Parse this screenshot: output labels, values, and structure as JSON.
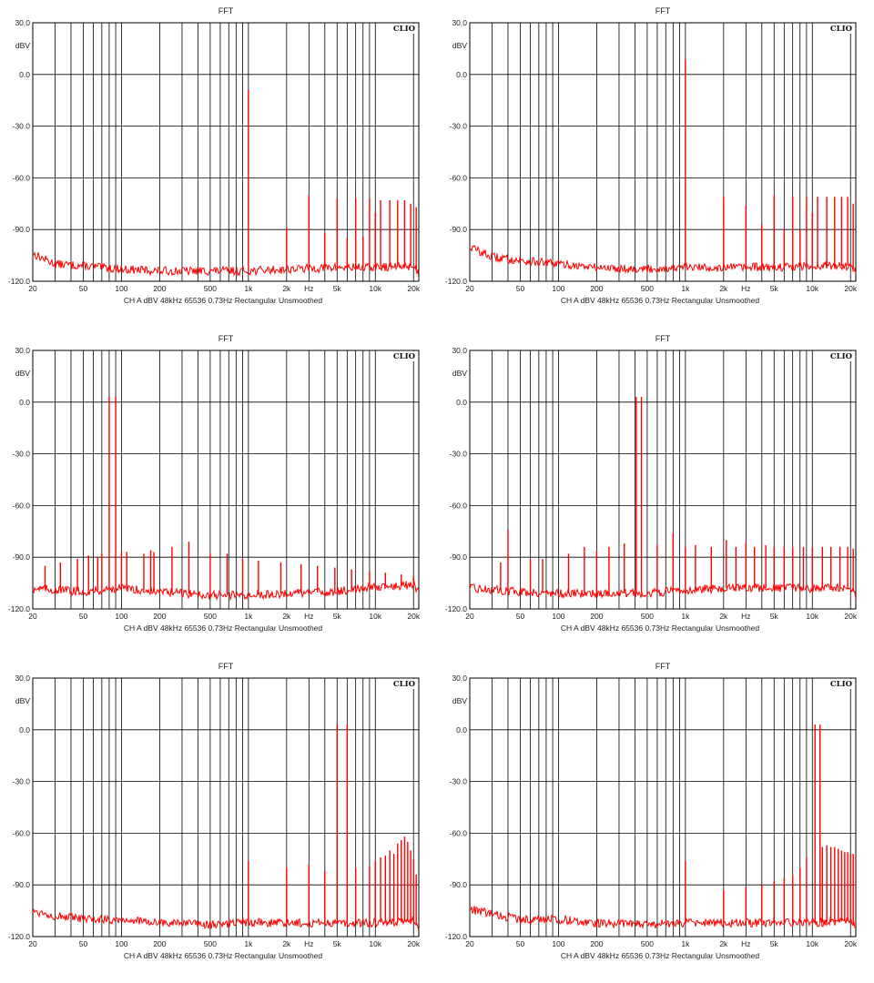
{
  "colors": {
    "trace": "#ff0000",
    "grid": "#000000",
    "background": "#ffffff"
  },
  "chart_data": [
    {
      "type": "line",
      "title": "FFT",
      "brand": "CLIO",
      "ylabel": "dBV",
      "xlabel": "Hz",
      "footer": "CH A   dBV   48kHz   65536   0.73Hz   Rectangular   Unsmoothed",
      "xscale": "log",
      "xlim": [
        20,
        22000
      ],
      "ylim": [
        -120,
        30
      ],
      "ytick_labels": [
        "30.0",
        "0.0",
        "-30.0",
        "-60.0",
        "-90.0",
        "-120.0"
      ],
      "xtick_labels": [
        "20",
        "50",
        "100",
        "200",
        "500",
        "1k",
        "2k",
        "Hz",
        "5k",
        "10k",
        "20k"
      ],
      "grid": true,
      "noise_floor": {
        "x": [
          20,
          30,
          50,
          100,
          200,
          500,
          1000,
          2000,
          5000,
          10000,
          20000,
          22000
        ],
        "y": [
          -104,
          -110,
          -111,
          -113,
          -114,
          -114,
          -114,
          -113,
          -112,
          -112,
          -111,
          -116
        ]
      },
      "peaks": [
        {
          "freq": 1000,
          "level": -9
        },
        {
          "freq": 2000,
          "level": -89
        },
        {
          "freq": 3000,
          "level": -70
        },
        {
          "freq": 4000,
          "level": -92
        },
        {
          "freq": 5000,
          "level": -72
        },
        {
          "freq": 6000,
          "level": -95
        },
        {
          "freq": 7000,
          "level": -72
        },
        {
          "freq": 8000,
          "level": -94
        },
        {
          "freq": 9000,
          "level": -72
        },
        {
          "freq": 10000,
          "level": -80
        },
        {
          "freq": 11000,
          "level": -73
        },
        {
          "freq": 13000,
          "level": -73
        },
        {
          "freq": 15000,
          "level": -73
        },
        {
          "freq": 17000,
          "level": -73
        },
        {
          "freq": 19000,
          "level": -75
        },
        {
          "freq": 21000,
          "level": -77
        }
      ]
    },
    {
      "type": "line",
      "title": "FFT",
      "brand": "CLIO",
      "ylabel": "dBV",
      "xlabel": "Hz",
      "footer": "CH A   dBV   48kHz   65536   0.73Hz   Rectangular   Unsmoothed",
      "xscale": "log",
      "xlim": [
        20,
        22000
      ],
      "ylim": [
        -120,
        30
      ],
      "ytick_labels": [
        "30.0",
        "0.0",
        "-30.0",
        "-60.0",
        "-90.0",
        "-120.0"
      ],
      "xtick_labels": [
        "20",
        "50",
        "100",
        "200",
        "500",
        "1k",
        "2k",
        "Hz",
        "5k",
        "10k",
        "20k"
      ],
      "grid": true,
      "noise_floor": {
        "x": [
          20,
          30,
          50,
          100,
          200,
          500,
          1000,
          2000,
          5000,
          10000,
          20000,
          22000
        ],
        "y": [
          -100,
          -106,
          -108,
          -110,
          -112,
          -113,
          -112,
          -112,
          -112,
          -111,
          -111,
          -115
        ]
      },
      "peaks": [
        {
          "freq": 1000,
          "level": 9
        },
        {
          "freq": 2000,
          "level": -71
        },
        {
          "freq": 3000,
          "level": -76
        },
        {
          "freq": 4000,
          "level": -87
        },
        {
          "freq": 5000,
          "level": -70
        },
        {
          "freq": 6000,
          "level": -90
        },
        {
          "freq": 7000,
          "level": -71
        },
        {
          "freq": 8000,
          "level": -90
        },
        {
          "freq": 9000,
          "level": -71
        },
        {
          "freq": 10000,
          "level": -80
        },
        {
          "freq": 11000,
          "level": -71
        },
        {
          "freq": 13000,
          "level": -71
        },
        {
          "freq": 15000,
          "level": -71
        },
        {
          "freq": 17000,
          "level": -71
        },
        {
          "freq": 19000,
          "level": -71
        },
        {
          "freq": 21000,
          "level": -75
        }
      ]
    },
    {
      "type": "line",
      "title": "FFT",
      "brand": "CLIO",
      "ylabel": "dBV",
      "xlabel": "Hz",
      "footer": "CH A   dBV   48kHz   65536   0.73Hz   Rectangular   Unsmoothed",
      "xscale": "log",
      "xlim": [
        20,
        22000
      ],
      "ylim": [
        -120,
        30
      ],
      "ytick_labels": [
        "30.0",
        "0.0",
        "-30.0",
        "-60.0",
        "-90.0",
        "-120.0"
      ],
      "xtick_labels": [
        "20",
        "50",
        "100",
        "200",
        "500",
        "1k",
        "2k",
        "Hz",
        "5k",
        "10k",
        "20k"
      ],
      "grid": true,
      "noise_floor": {
        "x": [
          20,
          50,
          100,
          200,
          500,
          1000,
          2000,
          5000,
          10000,
          20000,
          22000
        ],
        "y": [
          -108,
          -110,
          -108,
          -110,
          -112,
          -112,
          -111,
          -110,
          -107,
          -106,
          -110
        ]
      },
      "peaks": [
        {
          "freq": 80,
          "level": 3
        },
        {
          "freq": 90,
          "level": 3
        },
        {
          "freq": 25,
          "level": -95
        },
        {
          "freq": 33,
          "level": -93
        },
        {
          "freq": 45,
          "level": -91
        },
        {
          "freq": 55,
          "level": -89
        },
        {
          "freq": 65,
          "level": -90
        },
        {
          "freq": 70,
          "level": -88
        },
        {
          "freq": 100,
          "level": -87
        },
        {
          "freq": 110,
          "level": -87
        },
        {
          "freq": 150,
          "level": -88
        },
        {
          "freq": 170,
          "level": -86
        },
        {
          "freq": 180,
          "level": -87
        },
        {
          "freq": 250,
          "level": -84
        },
        {
          "freq": 340,
          "level": -81
        },
        {
          "freq": 500,
          "level": -88
        },
        {
          "freq": 680,
          "level": -88
        },
        {
          "freq": 900,
          "level": -91
        },
        {
          "freq": 1200,
          "level": -92
        },
        {
          "freq": 1800,
          "level": -93
        },
        {
          "freq": 2600,
          "level": -94
        },
        {
          "freq": 3500,
          "level": -95
        },
        {
          "freq": 4800,
          "level": -96
        },
        {
          "freq": 6500,
          "level": -97
        },
        {
          "freq": 9000,
          "level": -98
        },
        {
          "freq": 12000,
          "level": -99
        },
        {
          "freq": 16000,
          "level": -100
        },
        {
          "freq": 20000,
          "level": -101
        }
      ]
    },
    {
      "type": "line",
      "title": "FFT",
      "brand": "CLIO",
      "ylabel": "dBV",
      "xlabel": "Hz",
      "footer": "CH A   dBV   48kHz   65536   0.73Hz   Rectangular   Unsmoothed",
      "xscale": "log",
      "xlim": [
        20,
        22000
      ],
      "ylim": [
        -120,
        30
      ],
      "ytick_labels": [
        "30.0",
        "0.0",
        "-30.0",
        "-60.0",
        "-90.0",
        "-120.0"
      ],
      "xtick_labels": [
        "20",
        "50",
        "100",
        "200",
        "500",
        "1k",
        "2k",
        "Hz",
        "5k",
        "10k",
        "20k"
      ],
      "grid": true,
      "noise_floor": {
        "x": [
          20,
          50,
          100,
          200,
          500,
          1000,
          2000,
          5000,
          10000,
          20000,
          22000
        ],
        "y": [
          -108,
          -110,
          -111,
          -111,
          -111,
          -109,
          -108,
          -108,
          -108,
          -108,
          -112
        ]
      },
      "peaks": [
        {
          "freq": 410,
          "level": 3
        },
        {
          "freq": 450,
          "level": 3
        },
        {
          "freq": 40,
          "level": -74
        },
        {
          "freq": 35,
          "level": -93
        },
        {
          "freq": 60,
          "level": -91
        },
        {
          "freq": 75,
          "level": -91
        },
        {
          "freq": 120,
          "level": -88
        },
        {
          "freq": 160,
          "level": -84
        },
        {
          "freq": 200,
          "level": -86
        },
        {
          "freq": 250,
          "level": -84
        },
        {
          "freq": 330,
          "level": -82
        },
        {
          "freq": 600,
          "level": -83
        },
        {
          "freq": 800,
          "level": -76
        },
        {
          "freq": 1000,
          "level": -84
        },
        {
          "freq": 1200,
          "level": -83
        },
        {
          "freq": 1600,
          "level": -84
        },
        {
          "freq": 2100,
          "level": -80
        },
        {
          "freq": 2500,
          "level": -84
        },
        {
          "freq": 3000,
          "level": -81
        },
        {
          "freq": 3500,
          "level": -84
        },
        {
          "freq": 4300,
          "level": -83
        },
        {
          "freq": 5000,
          "level": -84
        },
        {
          "freq": 6000,
          "level": -84
        },
        {
          "freq": 7000,
          "level": -84
        },
        {
          "freq": 8500,
          "level": -84
        },
        {
          "freq": 10000,
          "level": -84
        },
        {
          "freq": 12000,
          "level": -84
        },
        {
          "freq": 14000,
          "level": -84
        },
        {
          "freq": 16500,
          "level": -84
        },
        {
          "freq": 19000,
          "level": -84
        },
        {
          "freq": 21000,
          "level": -85
        }
      ]
    },
    {
      "type": "line",
      "title": "FFT",
      "brand": "CLIO",
      "ylabel": "dBV",
      "xlabel": "Hz",
      "footer": "CH A   dBV   48kHz   65536   0.73Hz   Rectangular   Unsmoothed",
      "xscale": "log",
      "xlim": [
        20,
        22000
      ],
      "ylim": [
        -120,
        30
      ],
      "ytick_labels": [
        "30.0",
        "0.0",
        "-30.0",
        "-60.0",
        "-90.0",
        "-120.0"
      ],
      "xtick_labels": [
        "20",
        "50",
        "100",
        "200",
        "500",
        "1k",
        "2k",
        "Hz",
        "5k",
        "10k",
        "20k"
      ],
      "grid": true,
      "noise_floor": {
        "x": [
          20,
          30,
          50,
          100,
          200,
          500,
          1000,
          2000,
          5000,
          10000,
          20000,
          22000
        ],
        "y": [
          -105,
          -108,
          -110,
          -110,
          -112,
          -113,
          -112,
          -112,
          -112,
          -112,
          -111,
          -116
        ]
      },
      "peaks": [
        {
          "freq": 5000,
          "level": 3
        },
        {
          "freq": 6000,
          "level": 3
        },
        {
          "freq": 1000,
          "level": -76
        },
        {
          "freq": 2000,
          "level": -80
        },
        {
          "freq": 3000,
          "level": -78
        },
        {
          "freq": 4000,
          "level": -82
        },
        {
          "freq": 7000,
          "level": -80
        },
        {
          "freq": 9000,
          "level": -79
        },
        {
          "freq": 10000,
          "level": -76
        },
        {
          "freq": 11000,
          "level": -74
        },
        {
          "freq": 12000,
          "level": -73
        },
        {
          "freq": 13000,
          "level": -70
        },
        {
          "freq": 14000,
          "level": -72
        },
        {
          "freq": 15000,
          "level": -66
        },
        {
          "freq": 16000,
          "level": -64
        },
        {
          "freq": 17000,
          "level": -62
        },
        {
          "freq": 18000,
          "level": -65
        },
        {
          "freq": 19000,
          "level": -70
        },
        {
          "freq": 20000,
          "level": -75
        },
        {
          "freq": 21000,
          "level": -84
        }
      ]
    },
    {
      "type": "line",
      "title": "FFT",
      "brand": "CLIO",
      "ylabel": "dBV",
      "xlabel": "Hz",
      "footer": "CH A   dBV   48kHz   65536   0.73Hz   Rectangular   Unsmoothed",
      "xscale": "log",
      "xlim": [
        20,
        22000
      ],
      "ylim": [
        -120,
        30
      ],
      "ytick_labels": [
        "30.0",
        "0.0",
        "-30.0",
        "-60.0",
        "-90.0",
        "-120.0"
      ],
      "xtick_labels": [
        "20",
        "50",
        "100",
        "200",
        "500",
        "1k",
        "2k",
        "Hz",
        "5k",
        "10k",
        "20k"
      ],
      "grid": true,
      "noise_floor": {
        "x": [
          20,
          30,
          50,
          100,
          200,
          500,
          1000,
          2000,
          5000,
          10000,
          20000,
          22000
        ],
        "y": [
          -104,
          -107,
          -110,
          -110,
          -112,
          -113,
          -112,
          -112,
          -112,
          -112,
          -111,
          -116
        ]
      },
      "peaks": [
        {
          "freq": 10500,
          "level": 3
        },
        {
          "freq": 11500,
          "level": 3
        },
        {
          "freq": 1000,
          "level": -76
        },
        {
          "freq": 2000,
          "level": -93
        },
        {
          "freq": 3000,
          "level": -91
        },
        {
          "freq": 4000,
          "level": -90
        },
        {
          "freq": 5000,
          "level": -88
        },
        {
          "freq": 6000,
          "level": -86
        },
        {
          "freq": 7000,
          "level": -84
        },
        {
          "freq": 8000,
          "level": -80
        },
        {
          "freq": 9000,
          "level": -74
        },
        {
          "freq": 12000,
          "level": -68
        },
        {
          "freq": 13000,
          "level": -67
        },
        {
          "freq": 14000,
          "level": -68
        },
        {
          "freq": 15000,
          "level": -68
        },
        {
          "freq": 16000,
          "level": -69
        },
        {
          "freq": 17000,
          "level": -70
        },
        {
          "freq": 18000,
          "level": -71
        },
        {
          "freq": 19000,
          "level": -71
        },
        {
          "freq": 20000,
          "level": -72
        },
        {
          "freq": 21000,
          "level": -72
        },
        {
          "freq": 22000,
          "level": -73
        }
      ]
    }
  ]
}
